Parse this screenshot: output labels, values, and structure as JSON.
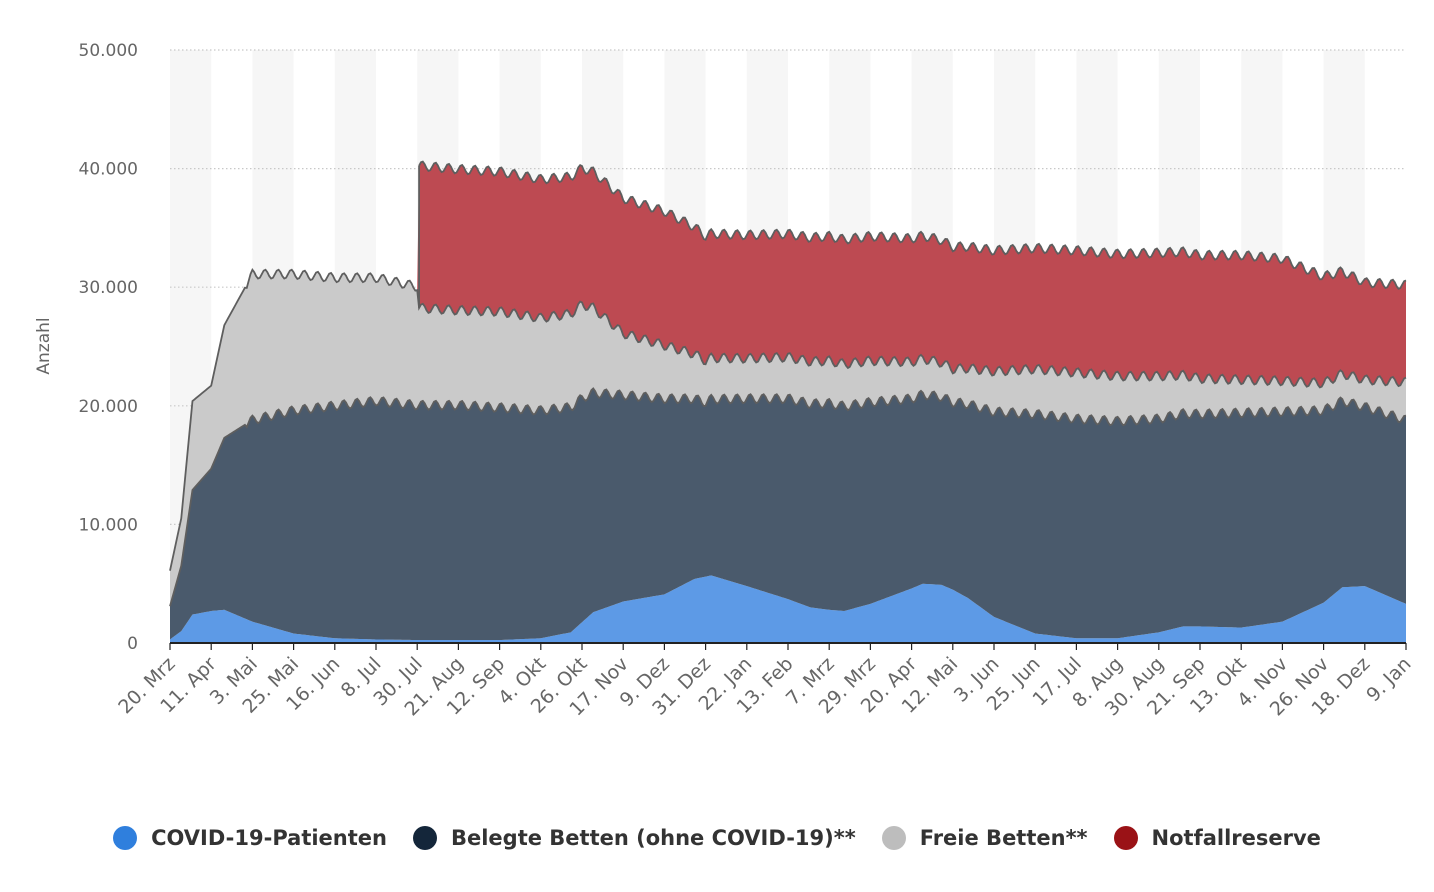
{
  "colors": {
    "covid": "#5d9ae6",
    "occupied": "#4a5a6c",
    "free": "#cacaca",
    "reserve": "#bd4a52",
    "covid_legend": "#2f7fdd",
    "occupied_legend": "#14263a",
    "free_legend": "#bdbdbd",
    "reserve_legend": "#9a1216",
    "outline": "#5e5e5e",
    "grid": "#c8c8c8",
    "band": "#f6f6f6",
    "axis_text": "#666666"
  },
  "legend": [
    {
      "label": "COVID-19-Patienten",
      "color_key": "covid_legend"
    },
    {
      "label": "Belegte Betten (ohne COVID-19)**",
      "color_key": "occupied_legend"
    },
    {
      "label": "Freie Betten**",
      "color_key": "free_legend"
    },
    {
      "label": "Notfallreserve",
      "color_key": "reserve_legend"
    }
  ],
  "chart_data": {
    "type": "area",
    "stacked": true,
    "ylabel": "Anzahl",
    "xlabel": "",
    "ylim": [
      0,
      50000
    ],
    "yticks": [
      0,
      10000,
      20000,
      30000,
      40000,
      50000
    ],
    "ytick_labels": [
      "0",
      "10.000",
      "20.000",
      "30.000",
      "40.000",
      "50.000"
    ],
    "xlim": [
      "2020-03-20",
      "2022-01-09"
    ],
    "xticks": [
      "2020-03-20",
      "2020-04-11",
      "2020-05-03",
      "2020-05-25",
      "2020-06-16",
      "2020-07-08",
      "2020-07-30",
      "2020-08-21",
      "2020-09-12",
      "2020-10-04",
      "2020-10-26",
      "2020-11-17",
      "2020-12-09",
      "2020-12-31",
      "2021-01-22",
      "2021-02-13",
      "2021-03-07",
      "2021-03-29",
      "2021-04-20",
      "2021-05-12",
      "2021-06-03",
      "2021-06-25",
      "2021-07-17",
      "2021-08-08",
      "2021-08-30",
      "2021-09-21",
      "2021-10-13",
      "2021-11-04",
      "2021-11-26",
      "2021-12-18",
      "2022-01-09"
    ],
    "xtick_labels": [
      "20. Mrz",
      "11. Apr",
      "3. Mai",
      "25. Mai",
      "16. Jun",
      "8. Jul",
      "30. Jul",
      "21. Aug",
      "12. Sep",
      "4. Okt",
      "26. Okt",
      "17. Nov",
      "9. Dez",
      "31. Dez",
      "22. Jan",
      "13. Feb",
      "7. Mrz",
      "29. Mrz",
      "20. Apr",
      "12. Mai",
      "3. Jun",
      "25. Jun",
      "17. Jul",
      "8. Aug",
      "30. Aug",
      "21. Sep",
      "13. Okt",
      "4. Nov",
      "26. Nov",
      "18. Dez",
      "9. Jan"
    ],
    "grid": true,
    "legend_position": "bottom",
    "series": [
      {
        "name": "COVID-19-Patienten",
        "color_key": "covid",
        "points": [
          [
            "2020-03-20",
            300
          ],
          [
            "2020-03-26",
            1000
          ],
          [
            "2020-04-01",
            2400
          ],
          [
            "2020-04-11",
            2700
          ],
          [
            "2020-04-18",
            2800
          ],
          [
            "2020-05-03",
            1800
          ],
          [
            "2020-05-25",
            800
          ],
          [
            "2020-06-16",
            400
          ],
          [
            "2020-07-08",
            300
          ],
          [
            "2020-07-30",
            250
          ],
          [
            "2020-08-21",
            250
          ],
          [
            "2020-09-12",
            250
          ],
          [
            "2020-10-04",
            400
          ],
          [
            "2020-10-20",
            900
          ],
          [
            "2020-11-01",
            2600
          ],
          [
            "2020-11-17",
            3500
          ],
          [
            "2020-12-09",
            4100
          ],
          [
            "2020-12-25",
            5400
          ],
          [
            "2021-01-03",
            5700
          ],
          [
            "2021-01-22",
            4800
          ],
          [
            "2021-02-13",
            3700
          ],
          [
            "2021-02-25",
            3000
          ],
          [
            "2021-03-07",
            2800
          ],
          [
            "2021-03-15",
            2700
          ],
          [
            "2021-03-29",
            3300
          ],
          [
            "2021-04-20",
            4600
          ],
          [
            "2021-04-26",
            5000
          ],
          [
            "2021-05-06",
            4900
          ],
          [
            "2021-05-12",
            4500
          ],
          [
            "2021-05-20",
            3800
          ],
          [
            "2021-06-03",
            2200
          ],
          [
            "2021-06-25",
            800
          ],
          [
            "2021-07-17",
            400
          ],
          [
            "2021-08-08",
            400
          ],
          [
            "2021-08-30",
            900
          ],
          [
            "2021-09-12",
            1400
          ],
          [
            "2021-09-21",
            1400
          ],
          [
            "2021-10-13",
            1300
          ],
          [
            "2021-11-04",
            1800
          ],
          [
            "2021-11-26",
            3400
          ],
          [
            "2021-12-06",
            4700
          ],
          [
            "2021-12-18",
            4800
          ],
          [
            "2022-01-09",
            3300
          ]
        ]
      },
      {
        "name": "Belegte Betten (ohne COVID-19)**",
        "color_key": "occupied",
        "points": [
          [
            "2020-03-20",
            2800
          ],
          [
            "2020-03-26",
            5500
          ],
          [
            "2020-04-01",
            10500
          ],
          [
            "2020-04-11",
            12000
          ],
          [
            "2020-04-18",
            14500
          ],
          [
            "2020-05-03",
            17000
          ],
          [
            "2020-05-25",
            18800
          ],
          [
            "2020-06-16",
            19600
          ],
          [
            "2020-07-08",
            20100
          ],
          [
            "2020-07-30",
            19800
          ],
          [
            "2020-08-21",
            19800
          ],
          [
            "2020-09-12",
            19600
          ],
          [
            "2020-10-04",
            19200
          ],
          [
            "2020-10-26",
            18900
          ],
          [
            "2020-11-17",
            17400
          ],
          [
            "2020-12-09",
            16500
          ],
          [
            "2020-12-31",
            14700
          ],
          [
            "2021-01-22",
            15800
          ],
          [
            "2021-02-13",
            16900
          ],
          [
            "2021-03-07",
            17400
          ],
          [
            "2021-03-29",
            17000
          ],
          [
            "2021-04-20",
            16000
          ],
          [
            "2021-05-12",
            15800
          ],
          [
            "2021-06-03",
            17300
          ],
          [
            "2021-06-25",
            18500
          ],
          [
            "2021-07-17",
            18500
          ],
          [
            "2021-08-08",
            18300
          ],
          [
            "2021-08-30",
            18000
          ],
          [
            "2021-09-21",
            17900
          ],
          [
            "2021-10-13",
            18100
          ],
          [
            "2021-11-04",
            17700
          ],
          [
            "2021-11-26",
            16200
          ],
          [
            "2021-12-18",
            15100
          ],
          [
            "2022-01-09",
            15500
          ]
        ]
      },
      {
        "name": "Freie Betten**",
        "color_key": "free",
        "points": [
          [
            "2020-03-20",
            3000
          ],
          [
            "2020-03-26",
            4000
          ],
          [
            "2020-04-01",
            7500
          ],
          [
            "2020-04-11",
            7000
          ],
          [
            "2020-04-18",
            9500
          ],
          [
            "2020-05-03",
            12300
          ],
          [
            "2020-05-25",
            11500
          ],
          [
            "2020-06-16",
            10800
          ],
          [
            "2020-07-08",
            10400
          ],
          [
            "2020-07-30",
            10000
          ],
          [
            "2020-07-31",
            8200
          ],
          [
            "2020-08-21",
            8000
          ],
          [
            "2020-09-12",
            8100
          ],
          [
            "2020-10-04",
            7800
          ],
          [
            "2020-10-26",
            7900
          ],
          [
            "2020-11-17",
            5200
          ],
          [
            "2020-12-09",
            4500
          ],
          [
            "2020-12-31",
            3500
          ],
          [
            "2021-01-22",
            3400
          ],
          [
            "2021-02-13",
            3500
          ],
          [
            "2021-03-07",
            3600
          ],
          [
            "2021-03-29",
            3500
          ],
          [
            "2021-04-20",
            3100
          ],
          [
            "2021-05-12",
            2800
          ],
          [
            "2021-06-03",
            3400
          ],
          [
            "2021-06-25",
            3800
          ],
          [
            "2021-07-17",
            3900
          ],
          [
            "2021-08-08",
            3800
          ],
          [
            "2021-08-30",
            3600
          ],
          [
            "2021-09-21",
            3000
          ],
          [
            "2021-10-13",
            2800
          ],
          [
            "2021-11-04",
            2600
          ],
          [
            "2021-11-26",
            2300
          ],
          [
            "2021-12-18",
            2300
          ],
          [
            "2022-01-09",
            3200
          ]
        ]
      },
      {
        "name": "Notfallreserve",
        "color_key": "reserve",
        "points": [
          [
            "2020-03-20",
            0
          ],
          [
            "2020-07-30",
            0
          ],
          [
            "2020-07-31",
            12000
          ],
          [
            "2020-08-21",
            11900
          ],
          [
            "2020-09-12",
            11800
          ],
          [
            "2020-10-04",
            11700
          ],
          [
            "2020-10-26",
            11500
          ],
          [
            "2020-11-17",
            11400
          ],
          [
            "2020-12-09",
            11300
          ],
          [
            "2020-12-31",
            10500
          ],
          [
            "2021-01-22",
            10400
          ],
          [
            "2021-02-13",
            10400
          ],
          [
            "2021-03-07",
            10500
          ],
          [
            "2021-03-29",
            10500
          ],
          [
            "2021-04-20",
            10400
          ],
          [
            "2021-05-12",
            10300
          ],
          [
            "2021-06-03",
            10200
          ],
          [
            "2021-06-25",
            10200
          ],
          [
            "2021-07-17",
            10300
          ],
          [
            "2021-08-08",
            10300
          ],
          [
            "2021-08-30",
            10400
          ],
          [
            "2021-09-21",
            10400
          ],
          [
            "2021-10-13",
            10500
          ],
          [
            "2021-11-04",
            10300
          ],
          [
            "2021-11-26",
            9000
          ],
          [
            "2021-12-18",
            8200
          ],
          [
            "2022-01-09",
            8200
          ]
        ]
      }
    ]
  }
}
